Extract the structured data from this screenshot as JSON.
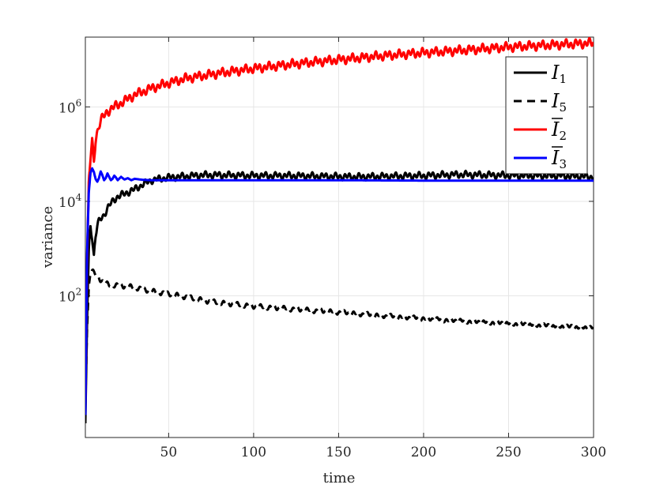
{
  "chart_data": {
    "type": "line",
    "title": "",
    "xlabel": "time",
    "ylabel": "variance",
    "xlim": [
      1,
      300
    ],
    "ylim": [
      0.1,
      30000000
    ],
    "yscale": "log",
    "grid": true,
    "legend_position": "top-right",
    "x_ticks": [
      50,
      100,
      150,
      200,
      250,
      300
    ],
    "x_tick_labels": [
      "50",
      "100",
      "150",
      "200",
      "250",
      "300"
    ],
    "y_ticks": [
      100,
      10000,
      1000000
    ],
    "y_tick_labels": [
      {
        "base": "10",
        "exp": "2"
      },
      {
        "base": "10",
        "exp": "4"
      },
      {
        "base": "10",
        "exp": "6"
      }
    ],
    "series": [
      {
        "name": "I1",
        "label_main": "I",
        "label_sub": "1",
        "bar": false,
        "color": "#000000",
        "dash": "solid",
        "wiggle": 0.09,
        "x": [
          1,
          2,
          3,
          4,
          5,
          6,
          7,
          8,
          9,
          10,
          12,
          14,
          16,
          18,
          20,
          25,
          30,
          35,
          40,
          50,
          60,
          70,
          80,
          100,
          120,
          140,
          160,
          180,
          200,
          220,
          240,
          260,
          280,
          300
        ],
        "y": [
          0.2,
          30,
          900,
          3000,
          1800,
          700,
          1800,
          3000,
          3700,
          4300,
          5200,
          7000,
          9000,
          11000,
          12500,
          15000,
          18000,
          23000,
          28000,
          32000,
          34000,
          36000,
          36000,
          35000,
          35000,
          34000,
          33000,
          34000,
          35000,
          37000,
          36000,
          35000,
          35000,
          33000
        ]
      },
      {
        "name": "I5",
        "label_main": "I",
        "label_sub": "5",
        "bar": false,
        "color": "#000000",
        "dash": "10,7",
        "wiggle": 0.06,
        "x": [
          1,
          2,
          3,
          4,
          5,
          6,
          8,
          10,
          12,
          15,
          20,
          25,
          30,
          40,
          50,
          60,
          75,
          100,
          125,
          150,
          175,
          200,
          225,
          250,
          275,
          300
        ],
        "y": [
          0.5,
          20,
          150,
          330,
          350,
          300,
          260,
          220,
          190,
          170,
          165,
          160,
          150,
          125,
          110,
          95,
          75,
          60,
          52,
          45,
          38,
          33,
          29,
          26,
          23,
          21
        ]
      },
      {
        "name": "Ī2",
        "label_main": "I",
        "label_sub": "2",
        "bar": true,
        "color": "#ff0000",
        "dash": "solid",
        "wiggle": 0.12,
        "x": [
          1,
          2,
          3,
          4,
          5,
          6,
          7,
          8,
          9,
          10,
          12,
          14,
          16,
          18,
          20,
          25,
          30,
          40,
          50,
          60,
          80,
          100,
          125,
          150,
          175,
          200,
          225,
          250,
          275,
          300
        ],
        "y": [
          0.5,
          500,
          25000,
          80000,
          180000,
          70000,
          200000,
          300000,
          400000,
          500000,
          650000,
          800000,
          900000,
          1000000,
          1100000,
          1400000,
          1800000,
          2500000,
          3200000,
          4000000,
          5200000,
          6500000,
          8200000,
          10000000,
          12000000,
          14000000,
          16000000,
          18500000,
          20500000,
          22500000
        ]
      },
      {
        "name": "Ī3",
        "label_main": "I",
        "label_sub": "3",
        "bar": true,
        "color": "#0000ff",
        "dash": "solid",
        "wiggle": 0,
        "x": [
          1,
          2,
          3,
          4,
          5,
          6,
          7,
          8,
          9,
          10,
          11,
          12,
          13,
          14,
          15,
          16,
          17,
          18,
          19,
          20,
          22,
          24,
          26,
          28,
          30,
          35,
          40,
          50,
          60,
          80,
          100,
          150,
          200,
          250,
          300
        ],
        "y": [
          0.3,
          800,
          15000,
          40000,
          50000,
          42000,
          30000,
          26000,
          31000,
          43000,
          36000,
          28000,
          31000,
          39000,
          33000,
          28000,
          30000,
          35000,
          32000,
          28000,
          33000,
          29000,
          31000,
          28000,
          30000,
          28500,
          28000,
          28000,
          28000,
          28000,
          28000,
          28000,
          27500,
          27500,
          27500
        ]
      }
    ]
  }
}
